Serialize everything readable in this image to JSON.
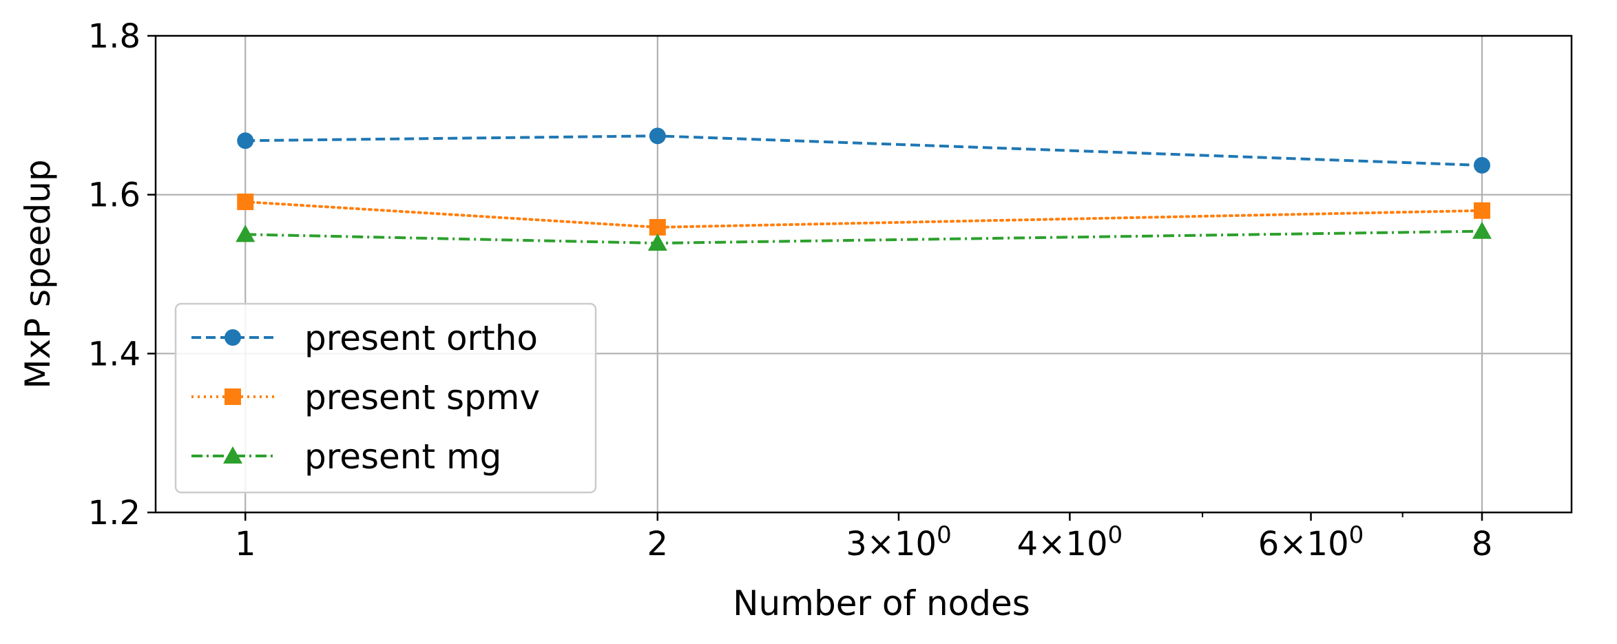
{
  "chart_data": {
    "type": "line",
    "xscale": "log",
    "xlabel": "Number of nodes",
    "ylabel": "MxP speedup",
    "xlim": [
      0.86,
      9.3
    ],
    "ylim": [
      1.2,
      1.8
    ],
    "grid": true,
    "legend_position": "lower-left",
    "x_major_ticks": [
      {
        "value": 1,
        "base": "1",
        "exp": ""
      },
      {
        "value": 2,
        "base": "2",
        "exp": ""
      },
      {
        "value": 3,
        "base": "3×10",
        "exp": "0"
      },
      {
        "value": 4,
        "base": "4×10",
        "exp": "0"
      },
      {
        "value": 6,
        "base": "6×10",
        "exp": "0"
      },
      {
        "value": 8,
        "base": "8",
        "exp": ""
      }
    ],
    "x_grid_values": [
      1,
      2,
      8
    ],
    "x_minor_ticks": [
      3,
      4,
      5,
      6,
      7
    ],
    "y_ticks": [
      {
        "value": 1.2,
        "label": "1.2"
      },
      {
        "value": 1.4,
        "label": "1.4"
      },
      {
        "value": 1.6,
        "label": "1.6"
      },
      {
        "value": 1.8,
        "label": "1.8"
      }
    ],
    "x": [
      1,
      2,
      8
    ],
    "series": [
      {
        "name": "present ortho",
        "values": [
          1.668,
          1.674,
          1.637
        ],
        "color": "#1f77b4",
        "marker": "circle",
        "linestyle": "dashed"
      },
      {
        "name": "present spmv",
        "values": [
          1.591,
          1.559,
          1.58
        ],
        "color": "#ff7f0e",
        "marker": "square",
        "linestyle": "dotted"
      },
      {
        "name": "present mg",
        "values": [
          1.55,
          1.539,
          1.554
        ],
        "color": "#2ca02c",
        "marker": "triangle",
        "linestyle": "dashdot"
      }
    ]
  }
}
